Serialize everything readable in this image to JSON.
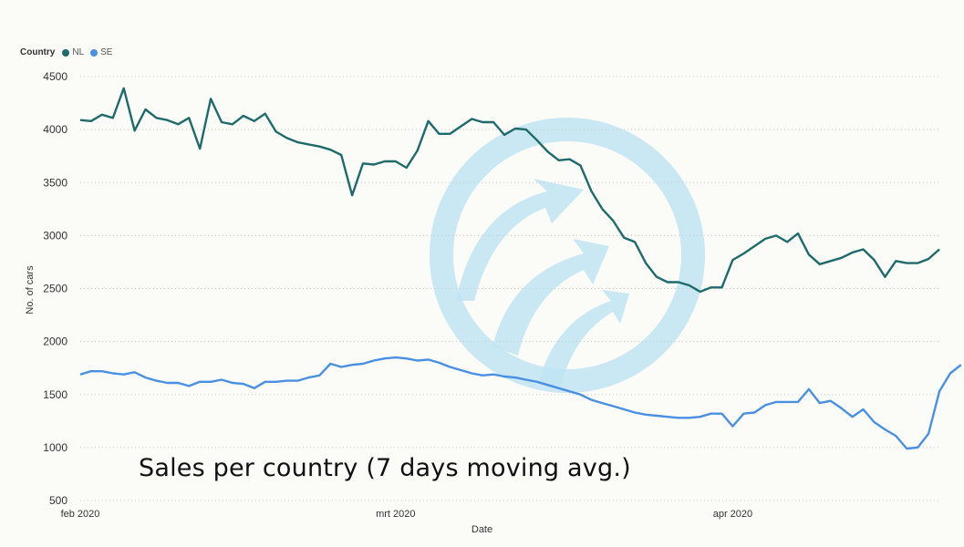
{
  "legend": {
    "title": "Country",
    "items": [
      {
        "label": "NL",
        "color": "#1f6b6b"
      },
      {
        "label": "SE",
        "color": "#4a90e2"
      }
    ]
  },
  "caption": "Sales per country (7 days moving avg.)",
  "chart_data": {
    "type": "line",
    "title": "",
    "xlabel": "Date",
    "ylabel": "No. of cars",
    "ylim": [
      500,
      4500
    ],
    "yticks": [
      500,
      1000,
      1500,
      2000,
      2500,
      3000,
      3500,
      4000,
      4500
    ],
    "xticks": [
      {
        "label": "feb 2020",
        "date": "2020-02-01"
      },
      {
        "label": "mrt 2020",
        "date": "2020-03-01"
      },
      {
        "label": "apr 2020",
        "date": "2020-04-01"
      }
    ],
    "xrange": [
      "2020-02-01",
      "2020-04-21"
    ],
    "grid": "horizontal",
    "legend_position": "top-left",
    "series": [
      {
        "name": "NL",
        "color": "#1f6b6b",
        "points": [
          [
            "2020-02-01",
            4090
          ],
          [
            "2020-02-02",
            4080
          ],
          [
            "2020-02-03",
            4140
          ],
          [
            "2020-02-04",
            4110
          ],
          [
            "2020-02-05",
            4390
          ],
          [
            "2020-02-06",
            3990
          ],
          [
            "2020-02-07",
            4190
          ],
          [
            "2020-02-08",
            4110
          ],
          [
            "2020-02-09",
            4090
          ],
          [
            "2020-02-10",
            4050
          ],
          [
            "2020-02-11",
            4110
          ],
          [
            "2020-02-12",
            3820
          ],
          [
            "2020-02-13",
            4290
          ],
          [
            "2020-02-14",
            4070
          ],
          [
            "2020-02-15",
            4050
          ],
          [
            "2020-02-16",
            4130
          ],
          [
            "2020-02-17",
            4080
          ],
          [
            "2020-02-18",
            4150
          ],
          [
            "2020-02-19",
            3980
          ],
          [
            "2020-02-20",
            3920
          ],
          [
            "2020-02-21",
            3880
          ],
          [
            "2020-02-22",
            3860
          ],
          [
            "2020-02-23",
            3840
          ],
          [
            "2020-02-24",
            3810
          ],
          [
            "2020-02-25",
            3760
          ],
          [
            "2020-02-26",
            3380
          ],
          [
            "2020-02-27",
            3680
          ],
          [
            "2020-02-28",
            3670
          ],
          [
            "2020-02-29",
            3700
          ],
          [
            "2020-03-01",
            3700
          ],
          [
            "2020-03-02",
            3640
          ],
          [
            "2020-03-03",
            3800
          ],
          [
            "2020-03-04",
            4080
          ],
          [
            "2020-03-05",
            3960
          ],
          [
            "2020-03-06",
            3960
          ],
          [
            "2020-03-07",
            4030
          ],
          [
            "2020-03-08",
            4100
          ],
          [
            "2020-03-09",
            4070
          ],
          [
            "2020-03-10",
            4070
          ],
          [
            "2020-03-11",
            3950
          ],
          [
            "2020-03-12",
            4010
          ],
          [
            "2020-03-13",
            4000
          ],
          [
            "2020-03-14",
            3900
          ],
          [
            "2020-03-15",
            3790
          ],
          [
            "2020-03-16",
            3710
          ],
          [
            "2020-03-17",
            3720
          ],
          [
            "2020-03-18",
            3660
          ],
          [
            "2020-03-19",
            3420
          ],
          [
            "2020-03-20",
            3250
          ],
          [
            "2020-03-21",
            3140
          ],
          [
            "2020-03-22",
            2980
          ],
          [
            "2020-03-23",
            2940
          ],
          [
            "2020-03-24",
            2740
          ],
          [
            "2020-03-25",
            2610
          ],
          [
            "2020-03-26",
            2560
          ],
          [
            "2020-03-27",
            2560
          ],
          [
            "2020-03-28",
            2530
          ],
          [
            "2020-03-29",
            2470
          ],
          [
            "2020-03-30",
            2510
          ],
          [
            "2020-03-31",
            2510
          ],
          [
            "2020-04-01",
            2770
          ],
          [
            "2020-04-02",
            2830
          ],
          [
            "2020-04-03",
            2900
          ],
          [
            "2020-04-04",
            2970
          ],
          [
            "2020-04-05",
            3000
          ],
          [
            "2020-04-06",
            2940
          ],
          [
            "2020-04-07",
            3020
          ],
          [
            "2020-04-08",
            2820
          ],
          [
            "2020-04-09",
            2730
          ],
          [
            "2020-04-10",
            2760
          ],
          [
            "2020-04-11",
            2790
          ],
          [
            "2020-04-12",
            2840
          ],
          [
            "2020-04-13",
            2870
          ],
          [
            "2020-04-14",
            2770
          ],
          [
            "2020-04-15",
            2610
          ],
          [
            "2020-04-16",
            2760
          ],
          [
            "2020-04-17",
            2740
          ],
          [
            "2020-04-18",
            2740
          ],
          [
            "2020-04-19",
            2780
          ],
          [
            "2020-04-20",
            2870
          ]
        ]
      },
      {
        "name": "SE",
        "color": "#4a90e2",
        "points": [
          [
            "2020-02-01",
            1690
          ],
          [
            "2020-02-02",
            1720
          ],
          [
            "2020-02-03",
            1720
          ],
          [
            "2020-02-04",
            1700
          ],
          [
            "2020-02-05",
            1690
          ],
          [
            "2020-02-06",
            1710
          ],
          [
            "2020-02-07",
            1660
          ],
          [
            "2020-02-08",
            1630
          ],
          [
            "2020-02-09",
            1610
          ],
          [
            "2020-02-10",
            1610
          ],
          [
            "2020-02-11",
            1580
          ],
          [
            "2020-02-12",
            1620
          ],
          [
            "2020-02-13",
            1620
          ],
          [
            "2020-02-14",
            1640
          ],
          [
            "2020-02-15",
            1610
          ],
          [
            "2020-02-16",
            1600
          ],
          [
            "2020-02-17",
            1560
          ],
          [
            "2020-02-18",
            1620
          ],
          [
            "2020-02-19",
            1620
          ],
          [
            "2020-02-20",
            1630
          ],
          [
            "2020-02-21",
            1630
          ],
          [
            "2020-02-22",
            1660
          ],
          [
            "2020-02-23",
            1680
          ],
          [
            "2020-02-24",
            1790
          ],
          [
            "2020-02-25",
            1760
          ],
          [
            "2020-02-26",
            1780
          ],
          [
            "2020-02-27",
            1790
          ],
          [
            "2020-02-28",
            1820
          ],
          [
            "2020-02-29",
            1840
          ],
          [
            "2020-03-01",
            1850
          ],
          [
            "2020-03-02",
            1840
          ],
          [
            "2020-03-03",
            1820
          ],
          [
            "2020-03-04",
            1830
          ],
          [
            "2020-03-05",
            1800
          ],
          [
            "2020-03-06",
            1760
          ],
          [
            "2020-03-07",
            1730
          ],
          [
            "2020-03-08",
            1700
          ],
          [
            "2020-03-09",
            1680
          ],
          [
            "2020-03-10",
            1690
          ],
          [
            "2020-03-11",
            1670
          ],
          [
            "2020-03-12",
            1660
          ],
          [
            "2020-03-13",
            1640
          ],
          [
            "2020-03-14",
            1620
          ],
          [
            "2020-03-15",
            1590
          ],
          [
            "2020-03-16",
            1560
          ],
          [
            "2020-03-17",
            1530
          ],
          [
            "2020-03-18",
            1500
          ],
          [
            "2020-03-19",
            1450
          ],
          [
            "2020-03-20",
            1420
          ],
          [
            "2020-03-21",
            1390
          ],
          [
            "2020-03-22",
            1360
          ],
          [
            "2020-03-23",
            1330
          ],
          [
            "2020-03-24",
            1310
          ],
          [
            "2020-03-25",
            1300
          ],
          [
            "2020-03-26",
            1290
          ],
          [
            "2020-03-27",
            1280
          ],
          [
            "2020-03-28",
            1280
          ],
          [
            "2020-03-29",
            1290
          ],
          [
            "2020-03-30",
            1320
          ],
          [
            "2020-03-31",
            1320
          ],
          [
            "2020-04-01",
            1200
          ],
          [
            "2020-04-02",
            1320
          ],
          [
            "2020-04-03",
            1330
          ],
          [
            "2020-04-04",
            1400
          ],
          [
            "2020-04-05",
            1430
          ],
          [
            "2020-04-06",
            1430
          ],
          [
            "2020-04-07",
            1430
          ],
          [
            "2020-04-08",
            1550
          ],
          [
            "2020-04-09",
            1420
          ],
          [
            "2020-04-10",
            1440
          ],
          [
            "2020-04-11",
            1370
          ],
          [
            "2020-04-12",
            1290
          ],
          [
            "2020-04-13",
            1360
          ],
          [
            "2020-04-14",
            1240
          ],
          [
            "2020-04-15",
            1170
          ],
          [
            "2020-04-16",
            1110
          ],
          [
            "2020-04-17",
            990
          ],
          [
            "2020-04-18",
            1000
          ],
          [
            "2020-04-19",
            1130
          ],
          [
            "2020-04-20",
            1530
          ],
          [
            "2020-04-21",
            1700
          ],
          [
            "2020-04-22",
            1780
          ]
        ]
      }
    ]
  }
}
